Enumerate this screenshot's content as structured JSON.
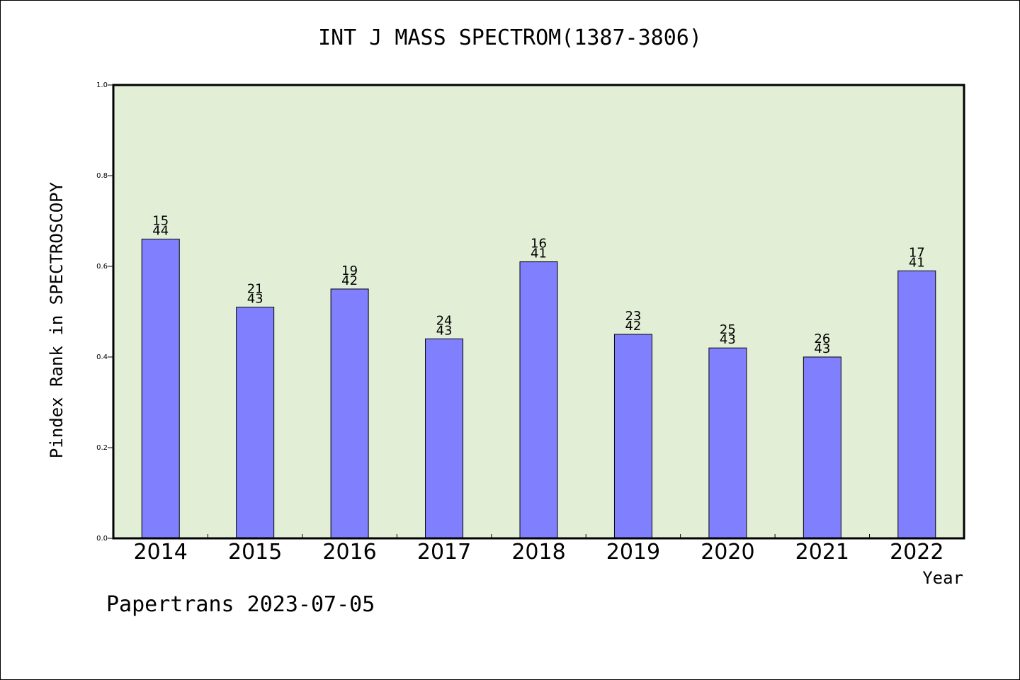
{
  "chart_data": {
    "type": "bar",
    "title": "INT J MASS SPECTROM(1387-3806)",
    "ylabel": "Pindex Rank in SPECTROSCOPY",
    "xlabel": "Year",
    "categories": [
      "2014",
      "2015",
      "2016",
      "2017",
      "2018",
      "2019",
      "2020",
      "2021",
      "2022"
    ],
    "values": [
      0.66,
      0.51,
      0.55,
      0.44,
      0.61,
      0.45,
      0.42,
      0.4,
      0.59
    ],
    "rank": [
      "15",
      "21",
      "19",
      "24",
      "16",
      "23",
      "25",
      "26",
      "17"
    ],
    "total": [
      "44",
      "43",
      "42",
      "43",
      "41",
      "42",
      "43",
      "43",
      "41"
    ],
    "ylim": [
      0,
      1.0
    ],
    "yticks": [
      "0.0",
      "0.2",
      "0.4",
      "0.6",
      "0.8",
      "1.0"
    ],
    "grid": false,
    "colors": {
      "plot_bg": "#e2efd6",
      "bar": "#8080ff"
    }
  },
  "footer": "Papertrans 2023-07-05"
}
